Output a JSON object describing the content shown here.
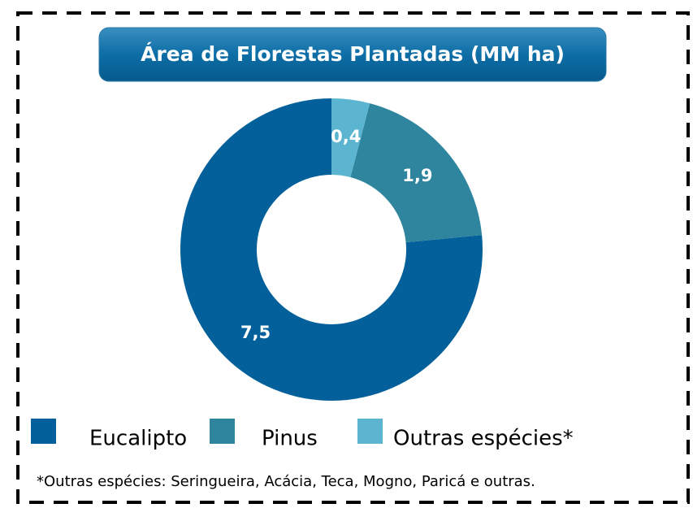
{
  "chart_data": {
    "type": "donut",
    "title": "Área de Florestas Plantadas (MM ha)",
    "categories": [
      "Eucalipto",
      "Pinus",
      "Outras espécies*"
    ],
    "values": [
      7.5,
      1.9,
      0.4
    ],
    "value_labels": [
      "7,5",
      "1,9",
      "0,4"
    ],
    "colors": [
      "#03609a",
      "#2f849e",
      "#5bb5d0"
    ],
    "legend": "bottom",
    "footnote": "*Outras espécies: Seringueira, Acácia, Teca, Mogno, Paricá e outras."
  }
}
